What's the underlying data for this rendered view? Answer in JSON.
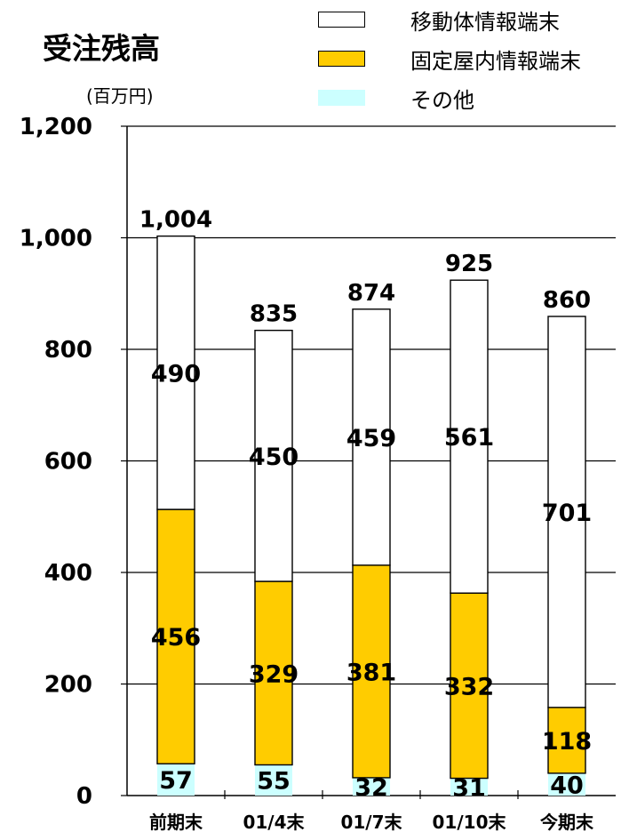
{
  "chart_data": {
    "type": "bar",
    "stacked": true,
    "title": "受注残高",
    "subtitle": "(百万円)",
    "categories": [
      "前期末",
      "01/4末",
      "01/7末",
      "01/10末",
      "今期末"
    ],
    "series": [
      {
        "name": "その他",
        "values": [
          57,
          55,
          32,
          31,
          40
        ],
        "color": "#ccffff"
      },
      {
        "name": "固定屋内情報端末",
        "values": [
          456,
          329,
          381,
          332,
          118
        ],
        "color": "#ffcc00"
      },
      {
        "name": "移動体情報端末",
        "values": [
          490,
          450,
          459,
          561,
          701
        ],
        "color": "#ffffff"
      }
    ],
    "totals": [
      "1,004",
      "835",
      "874",
      "925",
      "860"
    ],
    "legend_order": [
      "移動体情報端末",
      "固定屋内情報端末",
      "その他"
    ],
    "legend_position": "top-right",
    "ylim": [
      0,
      1200
    ],
    "yticks": [
      "0",
      "200",
      "400",
      "600",
      "800",
      "1,000",
      "1,200"
    ],
    "grid": true
  }
}
